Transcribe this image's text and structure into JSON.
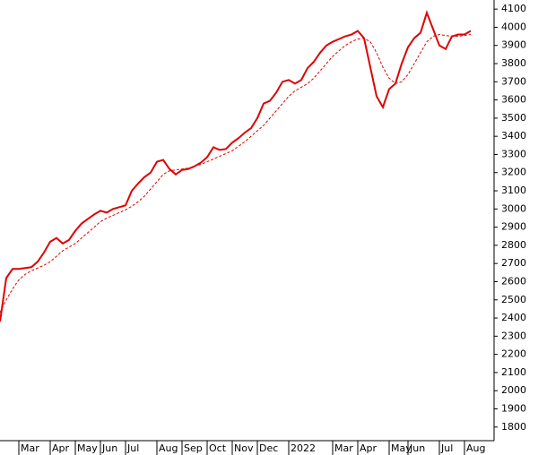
{
  "chart_data": {
    "type": "line",
    "categories": [
      null,
      null,
      null,
      "Mar",
      null,
      null,
      null,
      null,
      "Apr",
      null,
      null,
      null,
      "May",
      null,
      null,
      null,
      "Jun",
      null,
      null,
      null,
      "Jul",
      null,
      null,
      null,
      null,
      "Aug",
      null,
      null,
      null,
      "Sep",
      null,
      null,
      null,
      "Oct",
      null,
      null,
      null,
      "Nov",
      null,
      null,
      null,
      "Dec",
      null,
      null,
      null,
      null,
      "2022",
      null,
      null,
      null,
      null,
      null,
      null,
      "Mar",
      null,
      null,
      null,
      "Apr",
      null,
      null,
      null,
      null,
      "May",
      null,
      null,
      "Jun",
      null,
      null,
      null,
      null,
      "Jul",
      null,
      null,
      null,
      "Aug",
      null
    ],
    "series": [
      {
        "color": "#e00000",
        "dashed": false,
        "values": [
          2380,
          2620,
          2670,
          2670,
          2675,
          2680,
          2710,
          2760,
          2820,
          2840,
          2810,
          2830,
          2880,
          2920,
          2945,
          2970,
          2990,
          2980,
          3000,
          3010,
          3020,
          3100,
          3140,
          3175,
          3200,
          3260,
          3270,
          3220,
          3190,
          3215,
          3220,
          3235,
          3255,
          3285,
          3340,
          3325,
          3330,
          3365,
          3390,
          3420,
          3445,
          3500,
          3580,
          3595,
          3640,
          3700,
          3710,
          3690,
          3710,
          3775,
          3810,
          3860,
          3900,
          3920,
          3935,
          3950,
          3960,
          3980,
          3940,
          3780,
          3620,
          3560,
          3660,
          3690,
          3800,
          3890,
          3940,
          3970,
          4080,
          3990,
          3900,
          3880,
          3950,
          3960,
          3960,
          3980
        ]
      },
      {
        "color": "#e00000",
        "dashed": true,
        "values": [
          2430,
          2500,
          2560,
          2610,
          2640,
          2660,
          2675,
          2690,
          2710,
          2740,
          2770,
          2790,
          2810,
          2840,
          2870,
          2900,
          2930,
          2950,
          2965,
          2980,
          2995,
          3015,
          3040,
          3070,
          3110,
          3150,
          3190,
          3210,
          3215,
          3220,
          3225,
          3235,
          3245,
          3260,
          3275,
          3290,
          3305,
          3320,
          3345,
          3370,
          3400,
          3430,
          3460,
          3500,
          3540,
          3580,
          3620,
          3650,
          3670,
          3690,
          3720,
          3760,
          3800,
          3840,
          3870,
          3900,
          3920,
          3935,
          3940,
          3920,
          3860,
          3780,
          3720,
          3690,
          3700,
          3740,
          3800,
          3860,
          3920,
          3950,
          3960,
          3955,
          3950,
          3950,
          3955,
          3960
        ]
      }
    ],
    "ylim": [
      1725,
      4150
    ],
    "yticks": [
      1800,
      1900,
      2000,
      2100,
      2200,
      2300,
      2400,
      2500,
      2600,
      2700,
      2800,
      2900,
      3000,
      3100,
      3200,
      3300,
      3400,
      3500,
      3600,
      3700,
      3800,
      3900,
      4000,
      4100
    ],
    "y_axis_side": "right",
    "grid": false
  }
}
